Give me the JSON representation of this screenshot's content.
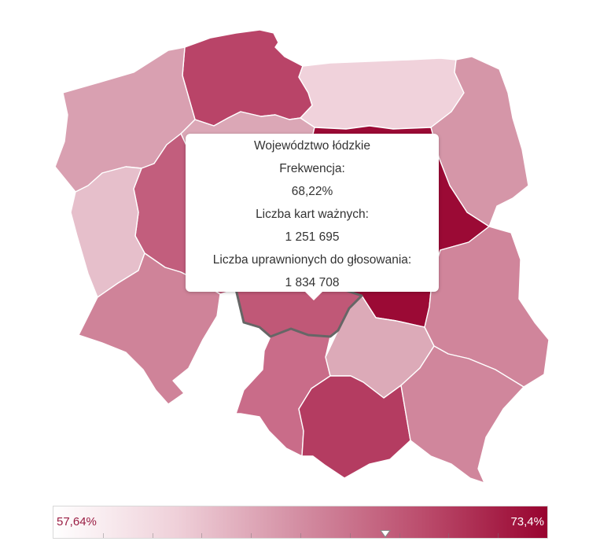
{
  "regions": [
    {
      "id": "pomorskie",
      "value": 70.4,
      "color": "#b94468"
    },
    {
      "id": "warminsko-mazurskie",
      "value": 60.2,
      "color": "#f0d2db"
    },
    {
      "id": "podlaskie",
      "value": 65.5,
      "color": "#d596a8"
    },
    {
      "id": "zachodniopomorskie",
      "value": 65.0,
      "color": "#d9a0b1"
    },
    {
      "id": "kujawsko-pomorskie",
      "value": 65.9,
      "color": "#dba7b6"
    },
    {
      "id": "wielkopolskie",
      "value": 69.4,
      "color": "#c25e7d"
    },
    {
      "id": "lubuskie",
      "value": 62.0,
      "color": "#e6bfcb"
    },
    {
      "id": "mazowieckie",
      "value": 73.4,
      "color": "#9b0a35"
    },
    {
      "id": "lodzkie",
      "value": 68.22,
      "color": "#c05877"
    },
    {
      "id": "dolnoslaskie",
      "value": 66.9,
      "color": "#cf8399"
    },
    {
      "id": "opolskie",
      "value": 57.64,
      "color": "#ffffff"
    },
    {
      "id": "slaskie",
      "value": 67.6,
      "color": "#c96c89"
    },
    {
      "id": "swietokrzyskie",
      "value": 64.6,
      "color": "#dcaab8"
    },
    {
      "id": "lubelskie",
      "value": 66.7,
      "color": "#d0859b"
    },
    {
      "id": "malopolskie",
      "value": 70.9,
      "color": "#b43c61"
    },
    {
      "id": "podkarpackie",
      "value": 66.6,
      "color": "#d0869c"
    }
  ],
  "tooltip": {
    "name": "Województwo łódzkie",
    "turnout_label": "Frekwencja:",
    "turnout_value": "68,22%",
    "valid_label": "Liczba kart ważnych:",
    "valid_value": "1 251 695",
    "eligible_label": "Liczba uprawnionych do głosowania:",
    "eligible_value": "1 834 708"
  },
  "legend": {
    "min_label": "57,64%",
    "max_label": "73,4%",
    "min_value": 57.64,
    "max_value": 73.4,
    "marker_value": 68.22,
    "tick_count": 10
  }
}
